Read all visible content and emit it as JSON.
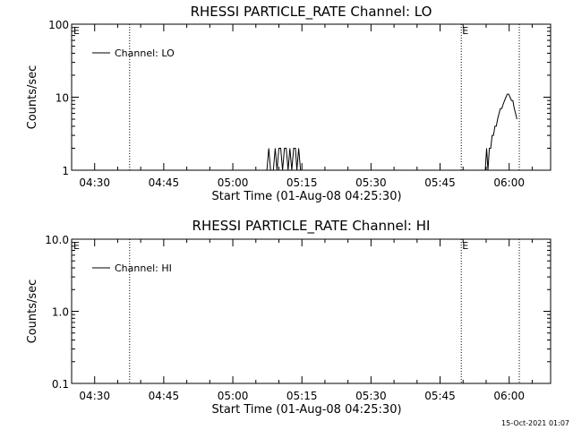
{
  "footer_timestamp": "15-Oct-2021 01:07",
  "chart_data": [
    {
      "type": "line",
      "title": "RHESSI PARTICLE_RATE Channel: LO",
      "xlabel": "Start Time (01-Aug-08 04:25:30)",
      "ylabel": "Counts/sec",
      "y_scale": "log",
      "ylim": [
        1,
        100
      ],
      "x_unit": "minutes after 04:25:30",
      "xlim": [
        0,
        104
      ],
      "x_tick_values": [
        5,
        20,
        35,
        50,
        65,
        80,
        95
      ],
      "x_tick_labels": [
        "04:30",
        "04:45",
        "05:00",
        "05:15",
        "05:30",
        "05:45",
        "06:00"
      ],
      "y_tick_values": [
        1,
        10,
        100
      ],
      "y_tick_labels": [
        "1",
        "10",
        "100"
      ],
      "vertical_markers": [
        {
          "x": 12.6,
          "label": "",
          "style": "dotted"
        },
        {
          "x": 84.6,
          "label": "E",
          "style": "dotted"
        },
        {
          "x": 97.2,
          "label": "",
          "style": "dotted"
        }
      ],
      "corner_label": "E",
      "legend": {
        "placement": "top-left",
        "entries": [
          "Channel: LO"
        ]
      },
      "grid": false,
      "series": [
        {
          "name": "Channel: LO",
          "x": [
            42.4,
            42.8,
            43.2,
            43.8,
            44.2,
            44.6,
            45.0,
            45.4,
            45.8,
            46.2,
            46.6,
            47.0,
            47.4,
            47.8,
            48.2,
            48.6,
            48.9,
            49.3,
            49.7,
            50.1
          ],
          "y": [
            1,
            2,
            1,
            1,
            2,
            1,
            2,
            2,
            1,
            2,
            2,
            1,
            2,
            1,
            2,
            2,
            1,
            2,
            1,
            1
          ]
        },
        {
          "name": "Channel: LO",
          "x": [
            89.5,
            89.8,
            90.1,
            90.4,
            90.7,
            91.0,
            91.3,
            91.6,
            91.9,
            92.2,
            92.5,
            92.8,
            93.1,
            93.4,
            93.7,
            94.0,
            94.3,
            94.6,
            94.9,
            95.2,
            95.5,
            95.8,
            96.1,
            96.4,
            96.7
          ],
          "y": [
            1,
            1,
            2,
            1,
            2,
            2,
            3,
            3,
            4,
            4,
            5,
            6,
            7,
            7,
            8,
            9,
            10,
            11,
            11,
            10,
            9,
            9,
            7,
            6,
            5
          ]
        }
      ]
    },
    {
      "type": "line",
      "title": "RHESSI PARTICLE_RATE Channel: HI",
      "xlabel": "Start Time (01-Aug-08 04:25:30)",
      "ylabel": "Counts/sec",
      "y_scale": "log",
      "ylim": [
        0.1,
        10
      ],
      "x_unit": "minutes after 04:25:30",
      "xlim": [
        0,
        104
      ],
      "x_tick_values": [
        5,
        20,
        35,
        50,
        65,
        80,
        95
      ],
      "x_tick_labels": [
        "04:30",
        "04:45",
        "05:00",
        "05:15",
        "05:30",
        "05:45",
        "06:00"
      ],
      "y_tick_values": [
        0.1,
        1,
        10
      ],
      "y_tick_labels": [
        "0.1",
        "1.0",
        "10.0"
      ],
      "vertical_markers": [
        {
          "x": 12.6,
          "label": "",
          "style": "dotted"
        },
        {
          "x": 84.6,
          "label": "E",
          "style": "dotted"
        },
        {
          "x": 97.2,
          "label": "",
          "style": "dotted"
        }
      ],
      "corner_label": "E",
      "legend": {
        "placement": "top-left",
        "entries": [
          "Channel: HI"
        ]
      },
      "grid": false,
      "series": [
        {
          "name": "Channel: HI",
          "x": [],
          "y": []
        }
      ]
    }
  ]
}
